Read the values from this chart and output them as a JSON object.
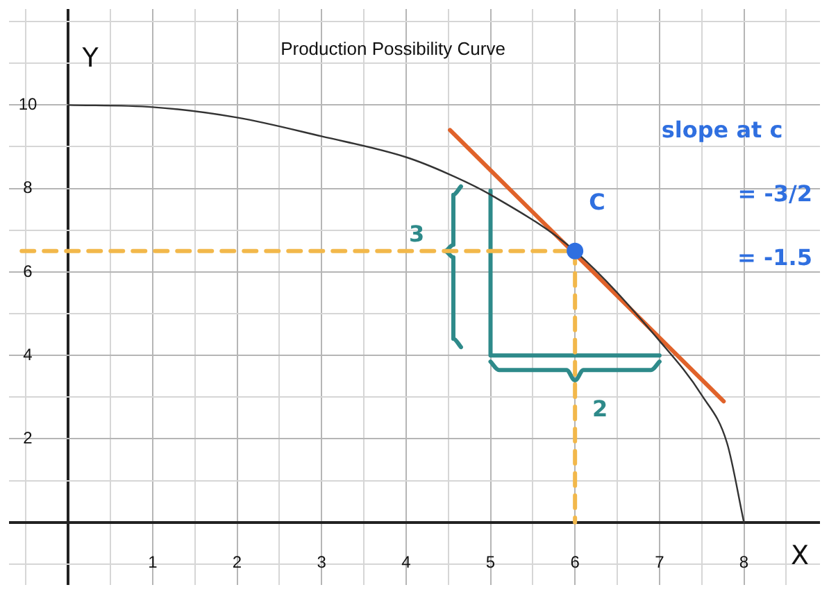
{
  "chart_data": {
    "type": "line",
    "title": "Production Possibility Curve",
    "xlabel": "X",
    "ylabel": "Y",
    "xlim": [
      -0.7,
      8.9
    ],
    "ylim": [
      -1.5,
      12.3
    ],
    "xticks": [
      {
        "value": -0.5,
        "label": null
      },
      {
        "value": 0,
        "label": null
      },
      {
        "value": 0.5,
        "label": null
      },
      1,
      {
        "value": 1.5,
        "label": null
      },
      2,
      {
        "value": 2.5,
        "label": null
      },
      3,
      {
        "value": 3.5,
        "label": null
      },
      4,
      {
        "value": 4.5,
        "label": null
      },
      5,
      {
        "value": 5.5,
        "label": null
      },
      6,
      {
        "value": 6.5,
        "label": null
      },
      7,
      {
        "value": 7.5,
        "label": null
      },
      8,
      {
        "value": 8.5,
        "label": null
      }
    ],
    "yticks": [
      {
        "value": -1,
        "label": null
      },
      {
        "value": 0,
        "label": null
      },
      {
        "value": 1,
        "label": null
      },
      2,
      {
        "value": 3,
        "label": null
      },
      4,
      {
        "value": 5,
        "label": null
      },
      6,
      {
        "value": 7,
        "label": null
      },
      8,
      {
        "value": 9,
        "label": null
      },
      10,
      {
        "value": 11,
        "label": null
      },
      {
        "value": 12,
        "label": null
      }
    ],
    "grid": true,
    "legend": false,
    "marker": "none",
    "series": [
      {
        "color": "#333333",
        "line_style": "solid",
        "x": [
          0,
          1,
          2,
          3,
          4,
          4.5,
          5,
          6,
          7,
          7.5,
          7.8,
          8
        ],
        "values": [
          10,
          9.95,
          9.7,
          9.25,
          8.75,
          8.35,
          7.85,
          6.5,
          4.35,
          3.05,
          1.9,
          0
        ]
      },
      {
        "type": "line",
        "color": "#e0622a",
        "line_style": "solid",
        "x": [
          4.52,
          7.76
        ],
        "values": [
          9.4,
          2.9
        ]
      },
      {
        "type": "line",
        "color": "#f2b84b",
        "line_style": "dashed",
        "x": [
          -0.55,
          6
        ],
        "values": [
          6.5,
          6.5
        ]
      },
      {
        "type": "line",
        "color": "#f2b84b",
        "line_style": "dashed",
        "x": [
          6,
          6
        ],
        "values": [
          6.5,
          0
        ]
      },
      {
        "type": "line",
        "color": "#2e8a8a",
        "line_style": "solid",
        "x": [
          5,
          5,
          7
        ],
        "values": [
          7.95,
          4,
          4
        ]
      },
      {
        "type": "line",
        "color": "#2e8a8a",
        "line_style": "solid",
        "x": [
          4.65,
          4.56,
          4.56,
          4.46,
          4.56,
          4.56,
          4.65
        ],
        "values": [
          8.05,
          7.85,
          6.65,
          6.5,
          6.35,
          4.4,
          4.2
        ]
      },
      {
        "type": "line",
        "color": "#2e8a8a",
        "line_style": "solid",
        "x": [
          5,
          5.1,
          5.9,
          6,
          6.1,
          6.9,
          7
        ],
        "values": [
          3.85,
          3.65,
          3.65,
          3.4,
          3.65,
          3.65,
          3.85
        ]
      },
      {
        "type": "scatter",
        "color": "#2f6fe0",
        "marker": "circle",
        "x": [
          6
        ],
        "values": [
          6.5
        ]
      }
    ],
    "annotations": [
      "C",
      "3",
      "2",
      "slope at c",
      "= -3/2",
      "= -1.5"
    ]
  }
}
